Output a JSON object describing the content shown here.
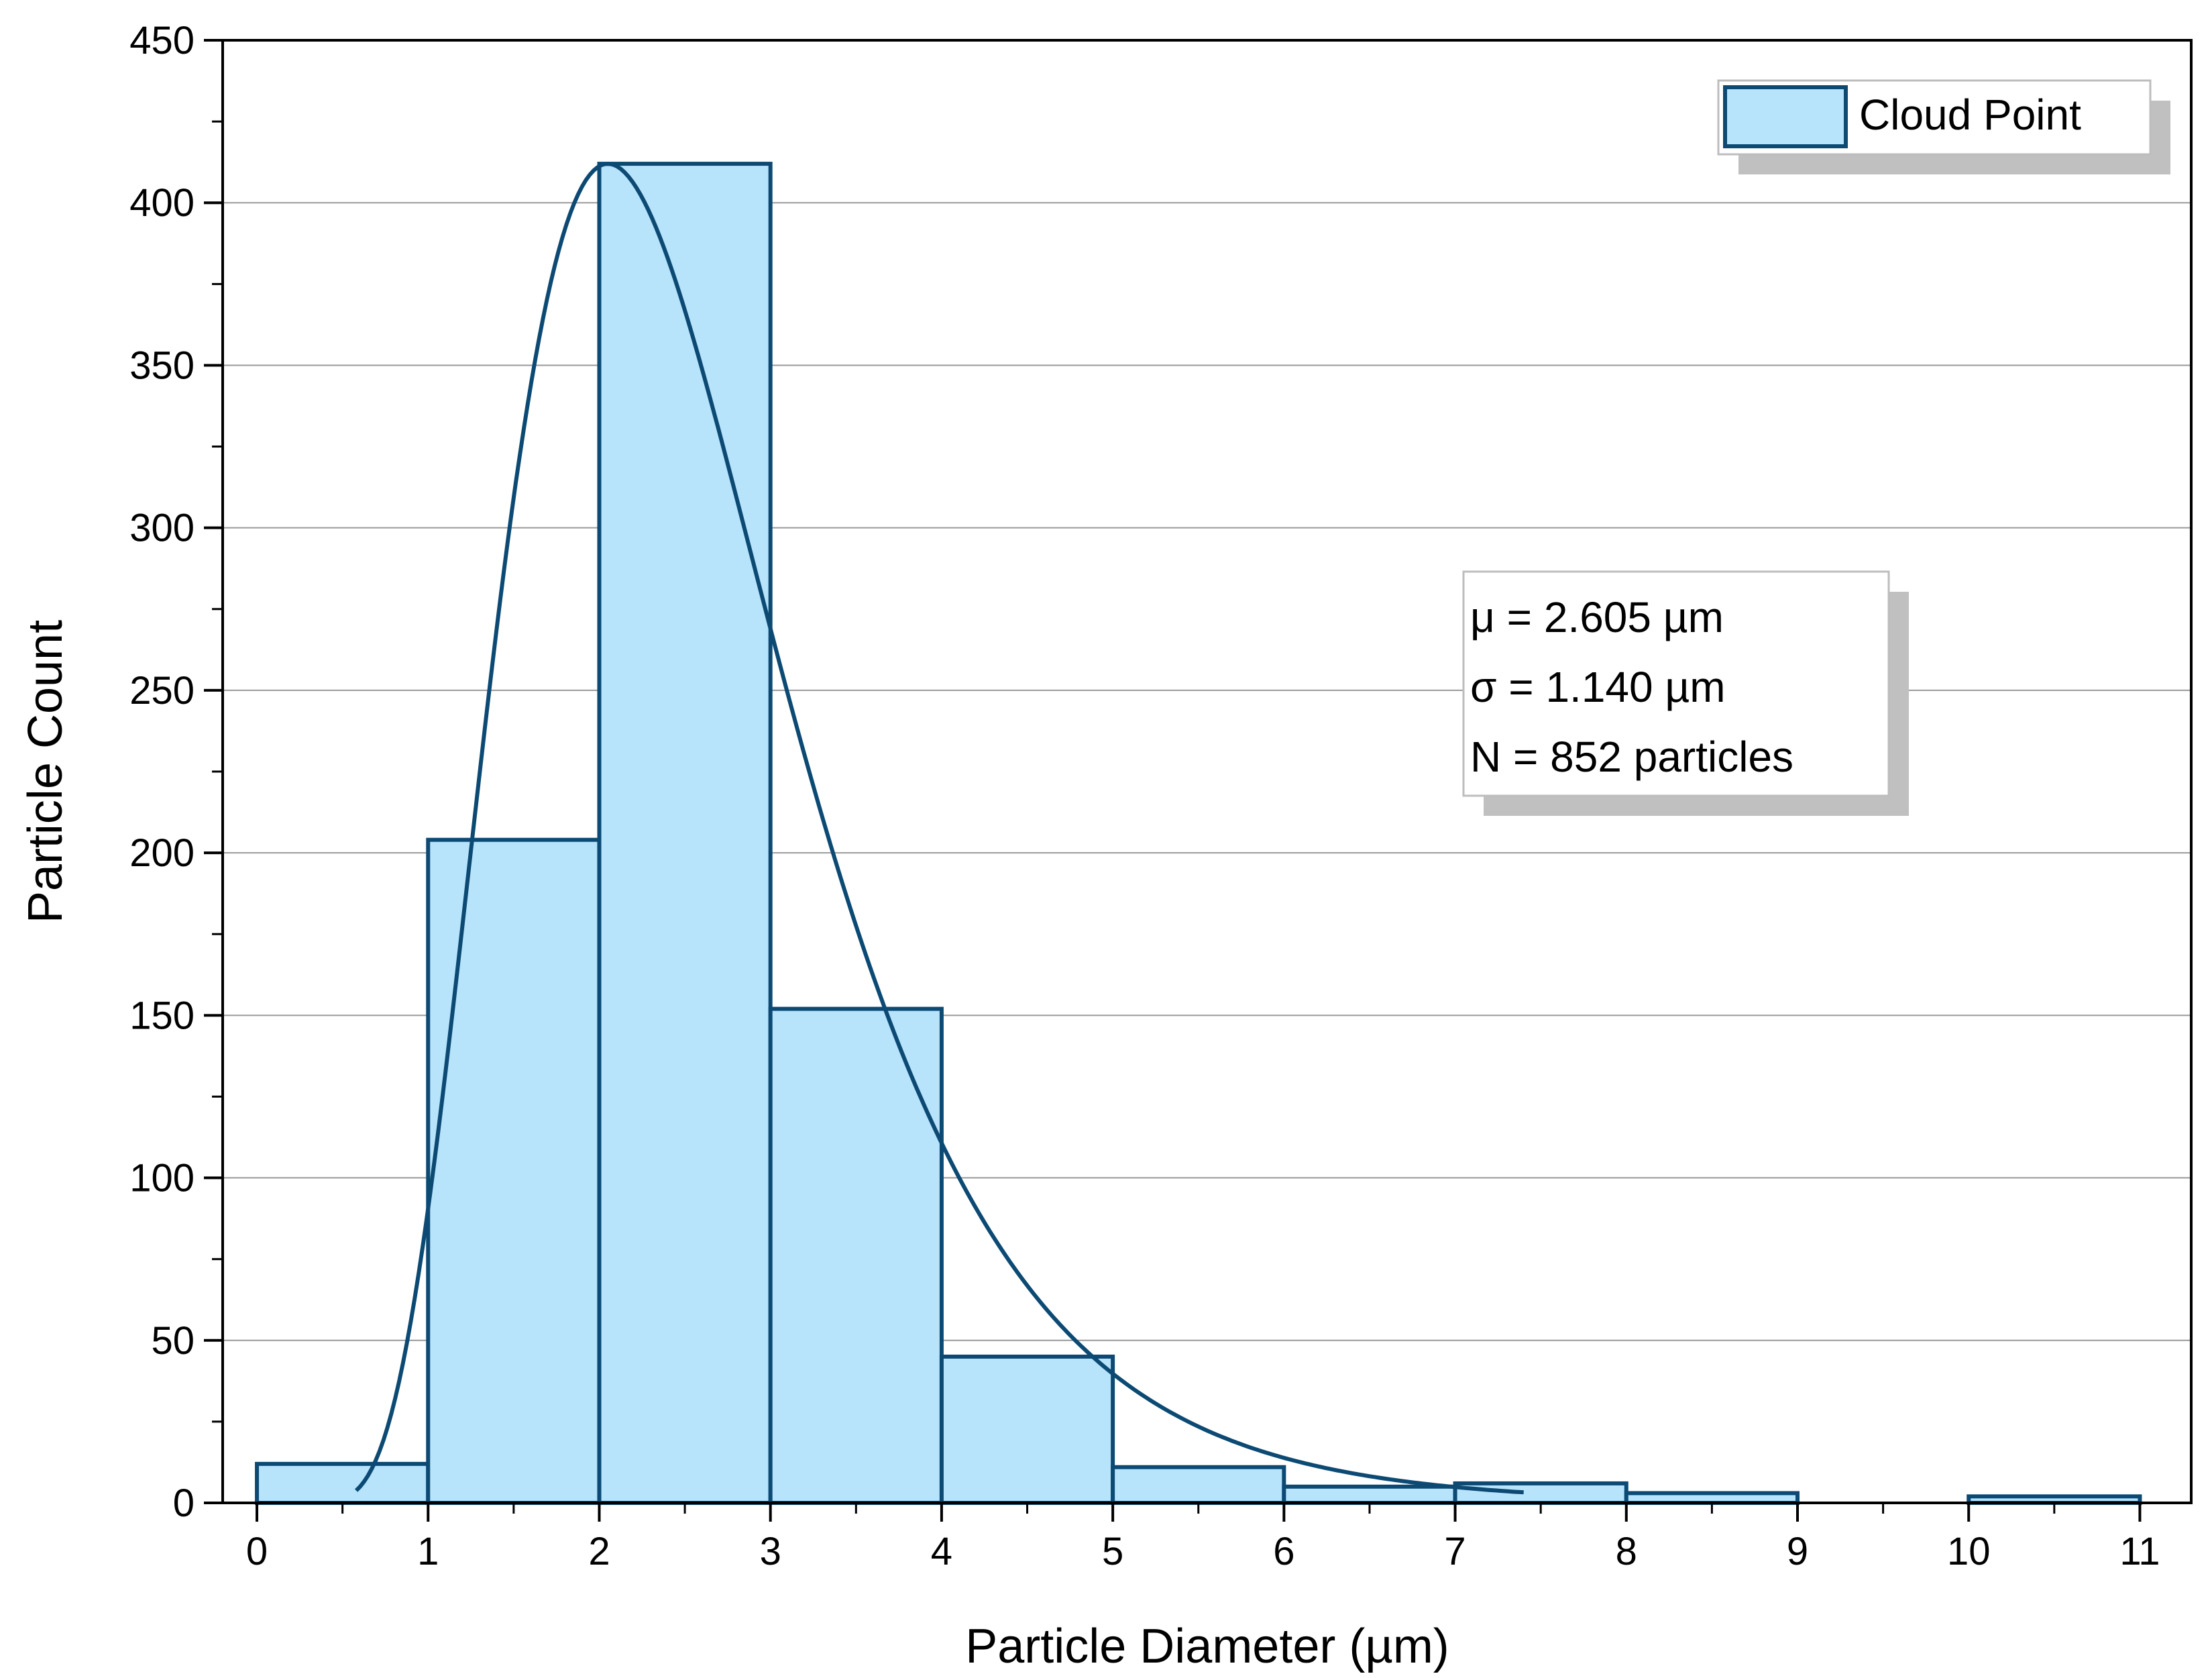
{
  "chart_data": {
    "type": "bar",
    "subtype": "histogram",
    "xlabel": "Particle Diameter (µm)",
    "ylabel": "Particle Count",
    "xlim": [
      -0.2,
      11.3
    ],
    "ylim": [
      0,
      450
    ],
    "xticks": [
      "0",
      "1",
      "2",
      "3",
      "4",
      "5",
      "6",
      "7",
      "8",
      "9",
      "10",
      "11"
    ],
    "yticks": [
      "0",
      "50",
      "100",
      "150",
      "200",
      "250",
      "300",
      "350",
      "400",
      "450"
    ],
    "grid": "horizontal",
    "bins": [
      {
        "start": 0,
        "end": 1,
        "count": 12
      },
      {
        "start": 1,
        "end": 2,
        "count": 204
      },
      {
        "start": 2,
        "end": 3,
        "count": 412
      },
      {
        "start": 3,
        "end": 4,
        "count": 152
      },
      {
        "start": 4,
        "end": 5,
        "count": 45
      },
      {
        "start": 5,
        "end": 6,
        "count": 11
      },
      {
        "start": 6,
        "end": 7,
        "count": 5
      },
      {
        "start": 7,
        "end": 8,
        "count": 6
      },
      {
        "start": 8,
        "end": 9,
        "count": 3
      },
      {
        "start": 9,
        "end": 10,
        "count": 0
      },
      {
        "start": 10,
        "end": 11,
        "count": 2
      }
    ],
    "fit_curve": {
      "type": "lognormal",
      "x_range": [
        0.58,
        7.4
      ],
      "peak": {
        "x": 2.05,
        "y": 412
      }
    },
    "series": [
      {
        "name": "Cloud Point",
        "fill": "#b7e3fb",
        "stroke": "#0c4a74"
      }
    ],
    "legend": {
      "position": "top-right",
      "label": "Cloud Point"
    },
    "annotation": {
      "position": "right",
      "lines": [
        "μ = 2.605 µm",
        "σ = 1.140 µm",
        "N = 852 particles"
      ]
    },
    "colors": {
      "bar_fill": "#b7e3fb",
      "bar_stroke": "#0c4a74",
      "curve": "#0c4a74",
      "grid": "#9a9a9a",
      "shadow": "#c0c0c0"
    }
  }
}
